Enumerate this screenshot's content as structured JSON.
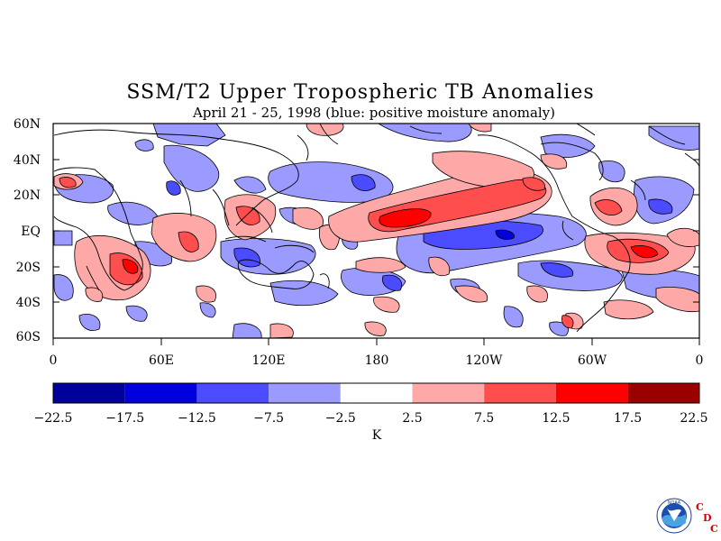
{
  "title": "SSM/T2 Upper Tropospheric TB Anomalies",
  "subtitle": "April 21 - 25, 1998 (blue: positive moisture anomaly)",
  "map": {
    "lat_labels": [
      "60N",
      "40N",
      "20N",
      "EQ",
      "20S",
      "40S",
      "60S"
    ],
    "lon_labels": [
      "0",
      "60E",
      "120E",
      "180",
      "120W",
      "60W",
      "0"
    ]
  },
  "colorbar": {
    "unit": "K",
    "ticks": [
      "-22.5",
      "-17.5",
      "-12.5",
      "-7.5",
      "-2.5",
      "2.5",
      "7.5",
      "12.5",
      "17.5",
      "22.5"
    ],
    "colors": [
      "#00009a",
      "#0000de",
      "#4b4bff",
      "#9a9aff",
      "#ffffff",
      "#ffa8a8",
      "#ff4e4e",
      "#ff0000",
      "#9a0000"
    ]
  },
  "logo": {
    "noaa_text": "NOAA",
    "cdc_letters": [
      "C",
      "D",
      "C"
    ]
  }
}
